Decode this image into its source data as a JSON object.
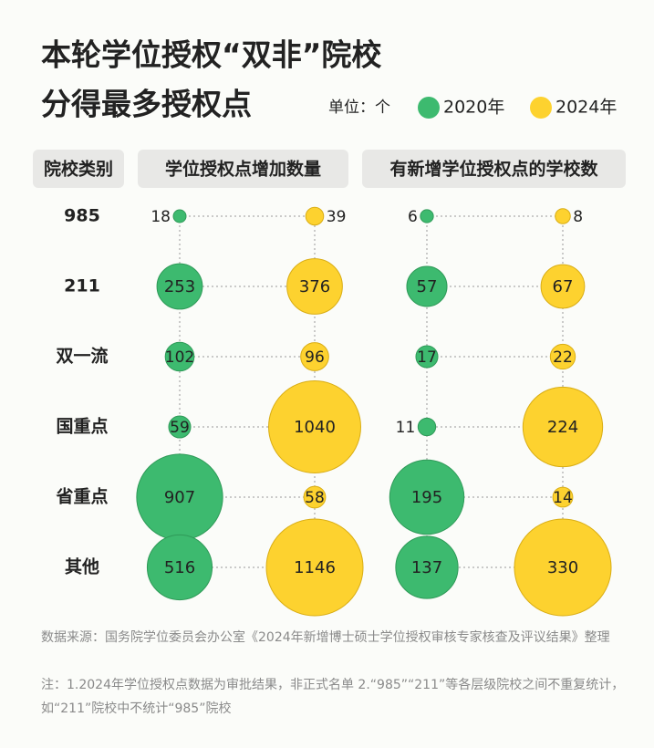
{
  "chart_data": {
    "type": "bubble-matrix",
    "title": [
      "本轮学位授权“双非”院校",
      "分得最多授权点"
    ],
    "unit": "单位：个",
    "legend": [
      {
        "name": "2020年",
        "color": "#3dba6f"
      },
      {
        "name": "2024年",
        "color": "#fdd22f"
      }
    ],
    "category_header": "院校类别",
    "categories": [
      "985",
      "211",
      "双一流",
      "国重点",
      "省重点",
      "其他"
    ],
    "panels": [
      {
        "title": "学位授权点增加数量",
        "series": [
          {
            "name": "2020年",
            "color": "#3dba6f",
            "values": [
              18,
              253,
              102,
              59,
              907,
              516
            ]
          },
          {
            "name": "2024年",
            "color": "#fdd22f",
            "values": [
              39,
              376,
              96,
              1040,
              58,
              1146
            ]
          }
        ]
      },
      {
        "title": "有新增学位授权点的学校数",
        "series": [
          {
            "name": "2020年",
            "color": "#3dba6f",
            "values": [
              6,
              57,
              17,
              11,
              195,
              137
            ]
          },
          {
            "name": "2024年",
            "color": "#fdd22f",
            "values": [
              8,
              67,
              22,
              224,
              14,
              330
            ]
          }
        ]
      }
    ],
    "source": "数据来源：国务院学位委员会办公室《2024年新增博士硕士学位授权审核专家核查及评议结果》整理",
    "note": "注：1.2024年学位授权点数据为审批结果，非正式名单 2.“985”“211”等各层级院校之间不重复统计，如“211”院校中不统计“985”院校"
  }
}
